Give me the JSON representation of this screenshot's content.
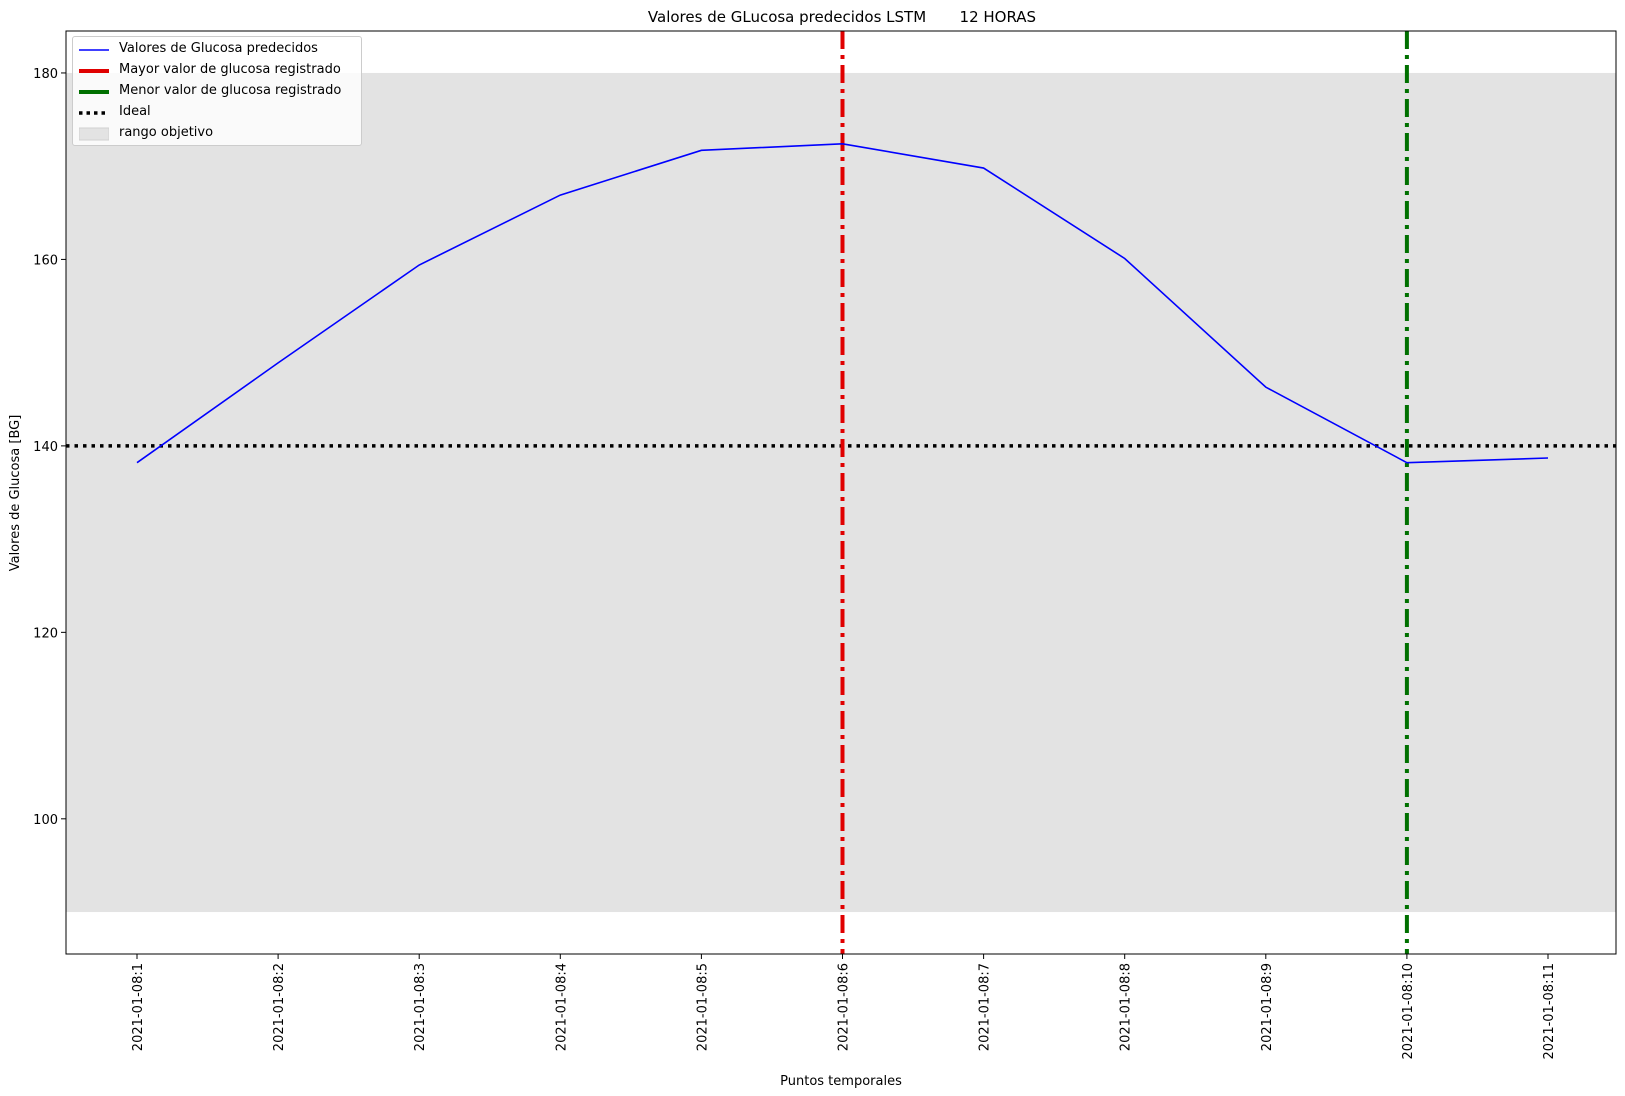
{
  "chart_data": {
    "type": "line",
    "title": "Valores de GLucosa predecidos LSTM       12 HORAS",
    "xlabel": "Puntos temporales",
    "ylabel": "Valores de Glucosa [BG]",
    "categories": [
      "2021-01-08:1",
      "2021-01-08:2",
      "2021-01-08:3",
      "2021-01-08:4",
      "2021-01-08:5",
      "2021-01-08:6",
      "2021-01-08:7",
      "2021-01-08:8",
      "2021-01-08:9",
      "2021-01-08:10",
      "2021-01-08:11"
    ],
    "series": [
      {
        "name": "Valores de Glucosa predecidos",
        "color": "#0000ff",
        "values": [
          138.2,
          148.9,
          159.4,
          166.9,
          171.7,
          172.4,
          169.8,
          160.1,
          146.3,
          138.2,
          138.7
        ]
      }
    ],
    "yticks": [
      100,
      120,
      140,
      160,
      180
    ],
    "ylim": [
      85.5,
      184.5
    ],
    "vlines": [
      {
        "name": "Mayor valor de glucosa registrado",
        "category": "2021-01-08:6",
        "color": "#e00000",
        "style": "dashdot"
      },
      {
        "name": "Menor valor de glucosa registrado",
        "category": "2021-01-08:10",
        "color": "#007000",
        "style": "dashdot"
      }
    ],
    "hline": {
      "name": "Ideal",
      "value": 140,
      "color": "#000000",
      "style": "dotted"
    },
    "band": {
      "name": "rango objetivo",
      "from": 90,
      "to": 180,
      "color": "#e3e3e3"
    },
    "legend": "top-left",
    "grid": false
  }
}
